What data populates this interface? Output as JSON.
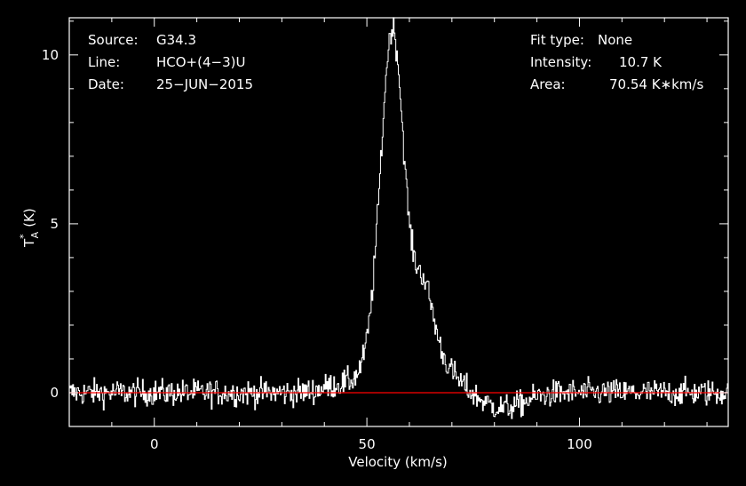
{
  "header": {
    "source_label": "Source:",
    "source_value": "G34.3",
    "line_label": "Line:",
    "line_value": "HCO+(4−3)U",
    "date_label": "Date:",
    "date_value": "25−JUN−2015",
    "fit_label": "Fit type:",
    "fit_value": "None",
    "intensity_label": "Intensity:",
    "intensity_value": "10.7 K",
    "area_label": "Area:",
    "area_value": "70.54 K∗km/s"
  },
  "colors": {
    "background": "#000000",
    "spectrum": "#ffffff",
    "baseline": "#ff0000",
    "frame": "#ffffff"
  },
  "chart_data": {
    "type": "line",
    "xlabel": "Velocity (km/s)",
    "ylabel": "T",
    "ylabel_sub": "A",
    "ylabel_sup": "*",
    "ylabel_unit": "(K)",
    "xlim": [
      -20,
      135
    ],
    "ylim": [
      -1.0,
      11.1
    ],
    "xticks": [
      0,
      50,
      100
    ],
    "yticks": [
      0,
      5,
      10
    ],
    "grid": false,
    "baseline_y": 0,
    "spectrum_profile": {
      "noise_rms": 0.28,
      "components": [
        {
          "center": 56.0,
          "peak": 10.3,
          "width": 2.7
        },
        {
          "center": 63.0,
          "peak": 2.4,
          "width": 2.4
        },
        {
          "center": 66.0,
          "peak": 0.9,
          "width": 4.5
        },
        {
          "center": 52.0,
          "peak": 0.9,
          "width": 3.0
        },
        {
          "center": 44.0,
          "peak": 0.25,
          "width": 4.0
        },
        {
          "center": 82.0,
          "peak": -0.45,
          "width": 5.0
        }
      ]
    },
    "series": [
      {
        "values_ref": "spectrum_profile"
      }
    ]
  }
}
